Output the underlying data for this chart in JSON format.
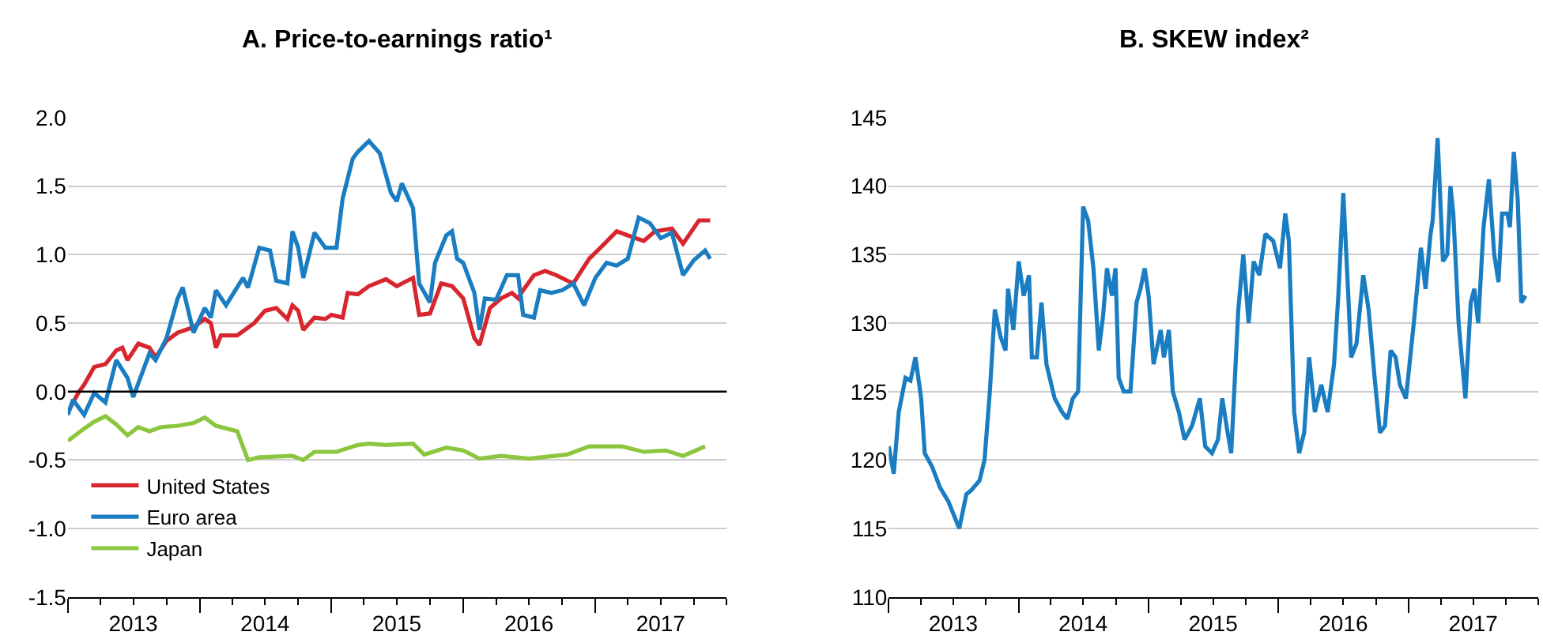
{
  "chart_data": [
    {
      "type": "line",
      "title": "A. Price-to-earnings ratio¹",
      "legend": "bottom left",
      "grid": "y",
      "xlim": [
        "2013-01-01",
        "2017-12-31"
      ],
      "xticks": [
        {
          "value": "2013-01-01",
          "label": null
        },
        {
          "value": "2013-04-01",
          "label": null
        },
        {
          "value": "2013-07-01",
          "label": "2013"
        },
        {
          "value": "2013-10-01",
          "label": null
        },
        {
          "value": "2014-01-01",
          "label": null
        },
        {
          "value": "2014-04-01",
          "label": null
        },
        {
          "value": "2014-07-01",
          "label": "2014"
        },
        {
          "value": "2014-10-01",
          "label": null
        },
        {
          "value": "2015-01-01",
          "label": null
        },
        {
          "value": "2015-04-01",
          "label": null
        },
        {
          "value": "2015-07-01",
          "label": "2015"
        },
        {
          "value": "2015-10-01",
          "label": null
        },
        {
          "value": "2016-01-01",
          "label": null
        },
        {
          "value": "2016-04-01",
          "label": null
        },
        {
          "value": "2016-07-01",
          "label": "2016"
        },
        {
          "value": "2016-10-01",
          "label": null
        },
        {
          "value": "2017-01-01",
          "label": null
        },
        {
          "value": "2017-04-01",
          "label": null
        },
        {
          "value": "2017-07-01",
          "label": "2017"
        },
        {
          "value": "2017-10-01",
          "label": null
        },
        {
          "value": "2017-12-31",
          "label": null
        }
      ],
      "ylim": [
        -1.5,
        2.0
      ],
      "yticks": [
        {
          "value": -1.5,
          "label": "-1.5"
        },
        {
          "value": -1.0,
          "label": "-1.0"
        },
        {
          "value": -0.5,
          "label": "-0.5"
        },
        {
          "value": 0,
          "label": "0.0"
        },
        {
          "value": 0.5,
          "label": "0.5"
        },
        {
          "value": 1.0,
          "label": "1.0"
        },
        {
          "value": 1.5,
          "label": "1.5"
        },
        {
          "value": 2.0,
          "label": "2.0"
        }
      ],
      "ref_lines": [
        {
          "axis": "y",
          "value": 0,
          "color": "#000000"
        }
      ],
      "series": [
        {
          "name": "United States",
          "color": "#d7262e",
          "x": [
            "2013-01-01",
            "2013-02-01",
            "2013-02-15",
            "2013-03-15",
            "2013-04-15",
            "2013-05-15",
            "2013-06-01",
            "2013-06-15",
            "2013-07-15",
            "2013-08-15",
            "2013-09-01",
            "2013-10-01",
            "2013-11-01",
            "2013-12-15",
            "2014-01-15",
            "2014-02-01",
            "2014-02-15",
            "2014-03-01",
            "2014-04-15",
            "2014-06-01",
            "2014-07-01",
            "2014-08-01",
            "2014-09-01",
            "2014-09-15",
            "2014-10-01",
            "2014-10-15",
            "2014-11-15",
            "2014-12-15",
            "2015-01-01",
            "2015-02-01",
            "2015-02-15",
            "2015-03-15",
            "2015-04-15",
            "2015-06-01",
            "2015-07-01",
            "2015-08-15",
            "2015-09-01",
            "2015-10-01",
            "2015-11-01",
            "2015-12-01",
            "2016-01-01",
            "2016-02-01",
            "2016-02-15",
            "2016-03-15",
            "2016-04-15",
            "2016-05-15",
            "2016-06-01",
            "2016-06-15",
            "2016-07-15",
            "2016-08-15",
            "2016-09-15",
            "2016-10-15",
            "2016-11-01",
            "2016-12-15",
            "2017-01-15",
            "2017-03-01",
            "2017-04-01",
            "2017-05-15",
            "2017-06-15",
            "2017-08-01",
            "2017-09-01",
            "2017-10-15",
            "2017-11-15"
          ],
          "values": [
            -0.15,
            0.0,
            0.05,
            0.18,
            0.2,
            0.3,
            0.32,
            0.23,
            0.35,
            0.32,
            0.25,
            0.37,
            0.43,
            0.47,
            0.53,
            0.5,
            0.32,
            0.41,
            0.41,
            0.5,
            0.59,
            0.61,
            0.53,
            0.63,
            0.59,
            0.45,
            0.54,
            0.53,
            0.56,
            0.54,
            0.72,
            0.71,
            0.77,
            0.82,
            0.77,
            0.83,
            0.56,
            0.57,
            0.79,
            0.77,
            0.68,
            0.39,
            0.34,
            0.61,
            0.68,
            0.72,
            0.68,
            0.74,
            0.85,
            0.88,
            0.85,
            0.81,
            0.79,
            0.97,
            1.05,
            1.17,
            1.14,
            1.1,
            1.17,
            1.19,
            1.08,
            1.25,
            1.25
          ]
        },
        {
          "name": "Euro area",
          "color": "#1a7dc2",
          "x": [
            "2013-01-01",
            "2013-01-15",
            "2013-02-15",
            "2013-03-15",
            "2013-04-15",
            "2013-05-15",
            "2013-06-15",
            "2013-07-01",
            "2013-08-15",
            "2013-09-01",
            "2013-10-01",
            "2013-11-01",
            "2013-11-15",
            "2013-12-15",
            "2014-01-15",
            "2014-02-01",
            "2014-02-15",
            "2014-03-15",
            "2014-05-01",
            "2014-05-15",
            "2014-06-15",
            "2014-07-15",
            "2014-08-01",
            "2014-09-01",
            "2014-09-15",
            "2014-10-01",
            "2014-10-15",
            "2014-11-15",
            "2014-12-15",
            "2015-01-15",
            "2015-02-01",
            "2015-03-01",
            "2015-03-15",
            "2015-04-15",
            "2015-05-15",
            "2015-06-15",
            "2015-07-01",
            "2015-07-15",
            "2015-08-15",
            "2015-09-01",
            "2015-10-01",
            "2015-10-15",
            "2015-11-15",
            "2015-12-01",
            "2015-12-15",
            "2016-01-01",
            "2016-02-01",
            "2016-02-15",
            "2016-03-01",
            "2016-04-01",
            "2016-05-01",
            "2016-06-01",
            "2016-06-15",
            "2016-07-15",
            "2016-08-01",
            "2016-09-01",
            "2016-10-01",
            "2016-11-01",
            "2016-12-01",
            "2017-01-01",
            "2017-02-01",
            "2017-03-01",
            "2017-04-01",
            "2017-05-01",
            "2017-06-01",
            "2017-07-01",
            "2017-08-01",
            "2017-09-01",
            "2017-10-01",
            "2017-11-01",
            "2017-11-15"
          ],
          "values": [
            -0.17,
            -0.06,
            -0.17,
            -0.01,
            -0.08,
            0.23,
            0.1,
            -0.04,
            0.28,
            0.23,
            0.39,
            0.68,
            0.76,
            0.43,
            0.61,
            0.54,
            0.74,
            0.63,
            0.83,
            0.76,
            1.05,
            1.03,
            0.81,
            0.79,
            1.17,
            1.05,
            0.83,
            1.16,
            1.05,
            1.05,
            1.41,
            1.7,
            1.75,
            1.83,
            1.74,
            1.45,
            1.39,
            1.52,
            1.34,
            0.79,
            0.65,
            0.94,
            1.14,
            1.17,
            0.97,
            0.94,
            0.72,
            0.45,
            0.68,
            0.67,
            0.85,
            0.85,
            0.56,
            0.54,
            0.74,
            0.72,
            0.74,
            0.79,
            0.63,
            0.83,
            0.94,
            0.92,
            0.97,
            1.27,
            1.23,
            1.12,
            1.16,
            0.85,
            0.96,
            1.03,
            0.97
          ]
        },
        {
          "name": "Japan",
          "color": "#8cc63f",
          "x": [
            "2013-01-01",
            "2013-02-15",
            "2013-03-15",
            "2013-04-15",
            "2013-05-15",
            "2013-06-15",
            "2013-07-15",
            "2013-08-15",
            "2013-09-15",
            "2013-11-01",
            "2013-12-15",
            "2014-01-15",
            "2014-02-15",
            "2014-04-15",
            "2014-05-15",
            "2014-06-15",
            "2014-09-15",
            "2014-10-15",
            "2014-11-15",
            "2015-01-15",
            "2015-03-15",
            "2015-04-15",
            "2015-06-01",
            "2015-08-15",
            "2015-09-15",
            "2015-11-15",
            "2016-01-01",
            "2016-02-15",
            "2016-04-15",
            "2016-07-01",
            "2016-10-15",
            "2016-12-15",
            "2017-03-15",
            "2017-05-15",
            "2017-07-15",
            "2017-09-01",
            "2017-11-01"
          ],
          "values": [
            -0.36,
            -0.27,
            -0.22,
            -0.18,
            -0.24,
            -0.32,
            -0.26,
            -0.29,
            -0.26,
            -0.25,
            -0.23,
            -0.19,
            -0.25,
            -0.29,
            -0.5,
            -0.48,
            -0.47,
            -0.5,
            -0.44,
            -0.44,
            -0.39,
            -0.38,
            -0.39,
            -0.38,
            -0.46,
            -0.41,
            -0.43,
            -0.49,
            -0.47,
            -0.49,
            -0.46,
            -0.4,
            -0.4,
            -0.44,
            -0.43,
            -0.47,
            -0.4
          ]
        }
      ]
    },
    {
      "type": "line",
      "title": "B. SKEW index²",
      "grid": "y",
      "xlim": [
        "2013-01-01",
        "2017-12-31"
      ],
      "xticks": [
        {
          "value": "2013-01-01",
          "label": null
        },
        {
          "value": "2013-04-01",
          "label": null
        },
        {
          "value": "2013-07-01",
          "label": "2013"
        },
        {
          "value": "2013-10-01",
          "label": null
        },
        {
          "value": "2014-01-01",
          "label": null
        },
        {
          "value": "2014-04-01",
          "label": null
        },
        {
          "value": "2014-07-01",
          "label": "2014"
        },
        {
          "value": "2014-10-01",
          "label": null
        },
        {
          "value": "2015-01-01",
          "label": null
        },
        {
          "value": "2015-04-01",
          "label": null
        },
        {
          "value": "2015-07-01",
          "label": "2015"
        },
        {
          "value": "2015-10-01",
          "label": null
        },
        {
          "value": "2016-01-01",
          "label": null
        },
        {
          "value": "2016-04-01",
          "label": null
        },
        {
          "value": "2016-07-01",
          "label": "2016"
        },
        {
          "value": "2016-10-01",
          "label": null
        },
        {
          "value": "2017-01-01",
          "label": null
        },
        {
          "value": "2017-04-01",
          "label": null
        },
        {
          "value": "2017-07-01",
          "label": "2017"
        },
        {
          "value": "2017-10-01",
          "label": null
        },
        {
          "value": "2017-12-31",
          "label": null
        }
      ],
      "ylim": [
        110,
        145
      ],
      "yticks": [
        110,
        115,
        120,
        125,
        130,
        135,
        140,
        145
      ],
      "series": [
        {
          "color": "#1a7dc2",
          "x": [
            "2013-01-01",
            "2013-01-15",
            "2013-01-29",
            "2013-02-17",
            "2013-03-03",
            "2013-03-17",
            "2013-04-02",
            "2013-04-12",
            "2013-05-03",
            "2013-05-25",
            "2013-06-17",
            "2013-07-18",
            "2013-08-07",
            "2013-08-21",
            "2013-09-13",
            "2013-09-27",
            "2013-10-12",
            "2013-10-26",
            "2013-11-11",
            "2013-11-25",
            "2013-12-02",
            "2013-12-17",
            "2014-01-01",
            "2014-01-15",
            "2014-01-30",
            "2014-02-07",
            "2014-02-21",
            "2014-03-06",
            "2014-03-20",
            "2014-04-12",
            "2014-05-03",
            "2014-05-18",
            "2014-06-02",
            "2014-06-17",
            "2014-07-01",
            "2014-07-15",
            "2014-07-30",
            "2014-08-14",
            "2014-08-26",
            "2014-09-06",
            "2014-09-20",
            "2014-09-30",
            "2014-10-09",
            "2014-10-23",
            "2014-11-11",
            "2014-11-28",
            "2014-12-09",
            "2014-12-21",
            "2015-01-01",
            "2015-01-15",
            "2015-02-04",
            "2015-02-13",
            "2015-02-27",
            "2015-03-10",
            "2015-03-27",
            "2015-04-12",
            "2015-05-03",
            "2015-05-25",
            "2015-06-09",
            "2015-06-28",
            "2015-07-15",
            "2015-07-27",
            "2015-08-11",
            "2015-08-21",
            "2015-09-10",
            "2015-09-24",
            "2015-10-09",
            "2015-10-23",
            "2015-11-08",
            "2015-11-25",
            "2015-12-17",
            "2016-01-05",
            "2016-01-20",
            "2016-01-30",
            "2016-02-14",
            "2016-02-28",
            "2016-03-13",
            "2016-03-27",
            "2016-04-12",
            "2016-04-30",
            "2016-05-18",
            "2016-06-05",
            "2016-06-17",
            "2016-07-01",
            "2016-07-15",
            "2016-07-23",
            "2016-08-07",
            "2016-08-26",
            "2016-09-10",
            "2016-09-27",
            "2016-10-12",
            "2016-10-26",
            "2016-11-11",
            "2016-11-25",
            "2016-12-07",
            "2016-12-24",
            "2017-01-15",
            "2017-02-04",
            "2017-02-17",
            "2017-03-03",
            "2017-03-09",
            "2017-03-23",
            "2017-04-07",
            "2017-04-19",
            "2017-04-28",
            "2017-05-06",
            "2017-05-21",
            "2017-06-09",
            "2017-06-24",
            "2017-07-04",
            "2017-07-15",
            "2017-07-30",
            "2017-08-14",
            "2017-08-29",
            "2017-09-10",
            "2017-09-20",
            "2017-10-05",
            "2017-10-12",
            "2017-10-23",
            "2017-11-03",
            "2017-11-13",
            "2017-11-25"
          ],
          "values": [
            121,
            119,
            123.5,
            126,
            125.8,
            127.5,
            124.5,
            120.5,
            119.5,
            118,
            117,
            115,
            117.5,
            117.8,
            118.5,
            120,
            125,
            131,
            129,
            128,
            132.5,
            129.5,
            134.5,
            132,
            133.5,
            127.5,
            127.5,
            131.5,
            127,
            124.5,
            123.5,
            123,
            124.5,
            125,
            138.5,
            137.5,
            134,
            128,
            130.5,
            134,
            132,
            134,
            126,
            125,
            125,
            131.5,
            132.5,
            134,
            132,
            127,
            129.5,
            127.5,
            129.5,
            125,
            123.5,
            121.5,
            122.5,
            124.5,
            121,
            120.5,
            121.5,
            124.5,
            122,
            120.5,
            131,
            135,
            130,
            134.5,
            133.5,
            136.5,
            136,
            134,
            138,
            136,
            123.5,
            120.5,
            122,
            127.5,
            123.5,
            125.5,
            123.5,
            127,
            132,
            139.5,
            132,
            127.5,
            128.5,
            133.5,
            131,
            126,
            122,
            122.5,
            128,
            127.5,
            125.5,
            124.5,
            130,
            135.5,
            132.5,
            136.5,
            137.5,
            143.5,
            134.5,
            135,
            140,
            138,
            130,
            124.5,
            131.5,
            132.5,
            130,
            137,
            140.5,
            135,
            133,
            138,
            138,
            137,
            142.5,
            139,
            131.5,
            132
          ]
        }
      ]
    }
  ]
}
